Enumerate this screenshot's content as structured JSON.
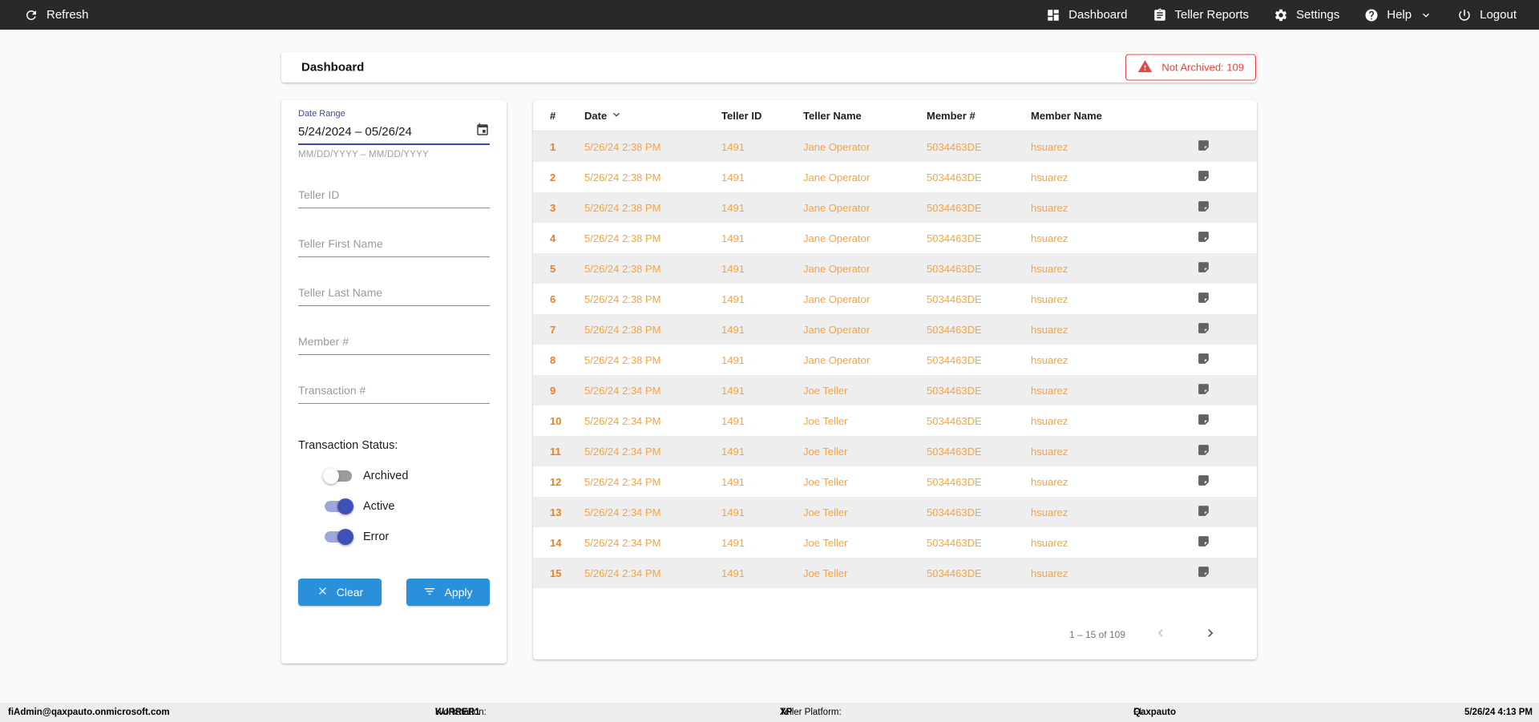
{
  "topbar": {
    "refresh_label": "Refresh",
    "dashboard_label": "Dashboard",
    "teller_reports_label": "Teller Reports",
    "settings_label": "Settings",
    "help_label": "Help",
    "logout_label": "Logout"
  },
  "header": {
    "title": "Dashboard",
    "not_archived_label": "Not Archived: 109"
  },
  "filters": {
    "date_range": {
      "label": "Date Range",
      "value": "5/24/2024 – 05/26/24",
      "hint": "MM/DD/YYYY – MM/DD/YYYY",
      "icon": "calendar-icon"
    },
    "text_fields": [
      {
        "name": "teller-id",
        "placeholder": "Teller ID"
      },
      {
        "name": "teller-first-name",
        "placeholder": "Teller First Name"
      },
      {
        "name": "teller-last-name",
        "placeholder": "Teller Last Name"
      },
      {
        "name": "member-number",
        "placeholder": "Member #"
      },
      {
        "name": "transaction-number",
        "placeholder": "Transaction #"
      }
    ],
    "status_label": "Transaction Status:",
    "toggles": [
      {
        "label": "Archived",
        "on": false
      },
      {
        "label": "Active",
        "on": true
      },
      {
        "label": "Error",
        "on": true
      }
    ],
    "clear_label": "Clear",
    "apply_label": "Apply"
  },
  "table": {
    "columns": [
      "#",
      "Date",
      "Teller ID",
      "Teller Name",
      "Member #",
      "Member Name"
    ],
    "sorted_column": "Date",
    "sort_direction": "desc",
    "row_icon": "note-icon",
    "rows": [
      {
        "num": "1",
        "date": "5/26/24 2:38 PM",
        "teller_id": "1491",
        "teller_name": "Jane Operator",
        "member_number": "5034463DE",
        "member_name": "hsuarez"
      },
      {
        "num": "2",
        "date": "5/26/24 2:38 PM",
        "teller_id": "1491",
        "teller_name": "Jane Operator",
        "member_number": "5034463DE",
        "member_name": "hsuarez"
      },
      {
        "num": "3",
        "date": "5/26/24 2:38 PM",
        "teller_id": "1491",
        "teller_name": "Jane Operator",
        "member_number": "5034463DE",
        "member_name": "hsuarez"
      },
      {
        "num": "4",
        "date": "5/26/24 2:38 PM",
        "teller_id": "1491",
        "teller_name": "Jane Operator",
        "member_number": "5034463DE",
        "member_name": "hsuarez"
      },
      {
        "num": "5",
        "date": "5/26/24 2:38 PM",
        "teller_id": "1491",
        "teller_name": "Jane Operator",
        "member_number": "5034463DE",
        "member_name": "hsuarez"
      },
      {
        "num": "6",
        "date": "5/26/24 2:38 PM",
        "teller_id": "1491",
        "teller_name": "Jane Operator",
        "member_number": "5034463DE",
        "member_name": "hsuarez"
      },
      {
        "num": "7",
        "date": "5/26/24 2:38 PM",
        "teller_id": "1491",
        "teller_name": "Jane Operator",
        "member_number": "5034463DE",
        "member_name": "hsuarez"
      },
      {
        "num": "8",
        "date": "5/26/24 2:38 PM",
        "teller_id": "1491",
        "teller_name": "Jane Operator",
        "member_number": "5034463DE",
        "member_name": "hsuarez"
      },
      {
        "num": "9",
        "date": "5/26/24 2:34 PM",
        "teller_id": "1491",
        "teller_name": "Joe Teller",
        "member_number": "5034463DE",
        "member_name": "hsuarez"
      },
      {
        "num": "10",
        "date": "5/26/24 2:34 PM",
        "teller_id": "1491",
        "teller_name": "Joe Teller",
        "member_number": "5034463DE",
        "member_name": "hsuarez"
      },
      {
        "num": "11",
        "date": "5/26/24 2:34 PM",
        "teller_id": "1491",
        "teller_name": "Joe Teller",
        "member_number": "5034463DE",
        "member_name": "hsuarez"
      },
      {
        "num": "12",
        "date": "5/26/24 2:34 PM",
        "teller_id": "1491",
        "teller_name": "Joe Teller",
        "member_number": "5034463DE",
        "member_name": "hsuarez"
      },
      {
        "num": "13",
        "date": "5/26/24 2:34 PM",
        "teller_id": "1491",
        "teller_name": "Joe Teller",
        "member_number": "5034463DE",
        "member_name": "hsuarez"
      },
      {
        "num": "14",
        "date": "5/26/24 2:34 PM",
        "teller_id": "1491",
        "teller_name": "Joe Teller",
        "member_number": "5034463DE",
        "member_name": "hsuarez"
      },
      {
        "num": "15",
        "date": "5/26/24 2:34 PM",
        "teller_id": "1491",
        "teller_name": "Joe Teller",
        "member_number": "5034463DE",
        "member_name": "hsuarez"
      }
    ],
    "pagination": {
      "range_label": "1 – 15 of 109",
      "prev_enabled": false,
      "next_enabled": true
    }
  },
  "footer": {
    "user_email": "fiAdmin@qaxpauto.onmicrosoft.com",
    "workstation_label": "Workstation:",
    "workstation_value": "KURRER1",
    "teller_platform_label": "Teller Platform:",
    "teller_platform_value": "XP",
    "fi_label": "FI:",
    "fi_value": "Qaxpauto",
    "timestamp": "5/26/24 4:13 PM"
  },
  "colors": {
    "topbar_bg": "#292929",
    "accent_blue": "#2b90da",
    "indigo": "#3949ab",
    "toggle_on": "#3f51b5",
    "alert_red": "#e8433f",
    "row_number_orange": "#ef7f1a",
    "row_text_orange": "#f9a43c",
    "row_stripe": "#eeeeee",
    "footer_bg": "#ecedef"
  }
}
